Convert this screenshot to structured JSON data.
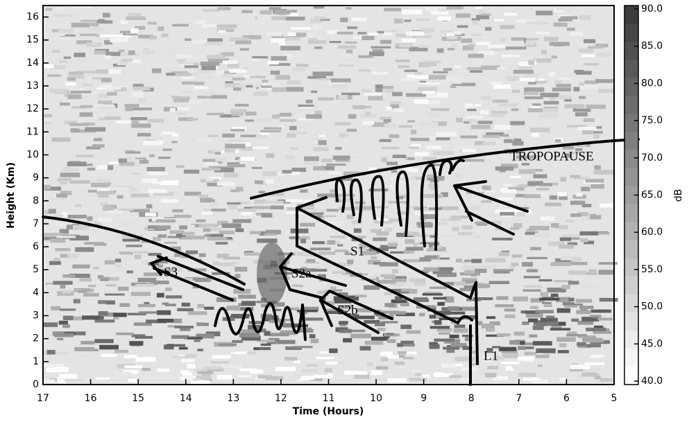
{
  "chart_data": {
    "type": "heatmap",
    "x_label": "Time (Hours)",
    "y_label": "Height (Km)",
    "xlim": [
      17,
      5
    ],
    "xticks": [
      17,
      16,
      15,
      14,
      13,
      12,
      11,
      10,
      9,
      8,
      7,
      6,
      5
    ],
    "ylim": [
      0,
      16.5
    ],
    "yticks": [
      0,
      1,
      2,
      3,
      4,
      5,
      6,
      7,
      8,
      9,
      10,
      11,
      12,
      13,
      14,
      15,
      16
    ],
    "colorbar": {
      "label": "dB",
      "lim": [
        40,
        90
      ],
      "ticks": [
        {
          "value": 40,
          "label": "40.0"
        },
        {
          "value": 45,
          "label": "45.0"
        },
        {
          "value": 50,
          "label": "50.0"
        },
        {
          "value": 55,
          "label": "55.0"
        },
        {
          "value": 60,
          "label": "60.0"
        },
        {
          "value": 65,
          "label": "65.0"
        },
        {
          "value": 70,
          "label": "70.0"
        },
        {
          "value": 75,
          "label": "75.0"
        },
        {
          "value": 80,
          "label": "80.0"
        },
        {
          "value": 85,
          "label": "85.0"
        },
        {
          "value": 90,
          "label": "90.0"
        }
      ]
    },
    "annotations": [
      "TROPOPAUSE",
      "S1",
      "S2a",
      "S2b",
      "S3",
      "L1"
    ]
  }
}
